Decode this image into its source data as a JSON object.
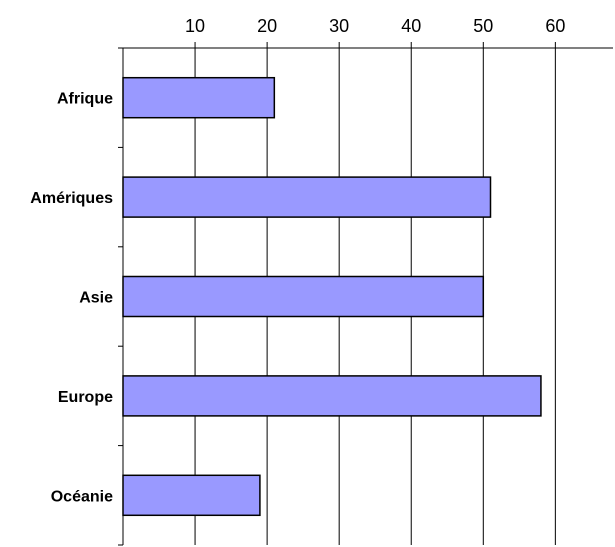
{
  "chart_data": {
    "type": "bar",
    "orientation": "horizontal",
    "categories": [
      "Afrique",
      "Amériques",
      "Asie",
      "Europe",
      "Océanie"
    ],
    "values": [
      21,
      51,
      50,
      58,
      19
    ],
    "xlim": [
      0,
      68
    ],
    "xticks": [
      10,
      20,
      30,
      40,
      50,
      60
    ],
    "xaxis_position": "top",
    "grid": true,
    "legend": "none",
    "bar_color": "#9999ff"
  }
}
